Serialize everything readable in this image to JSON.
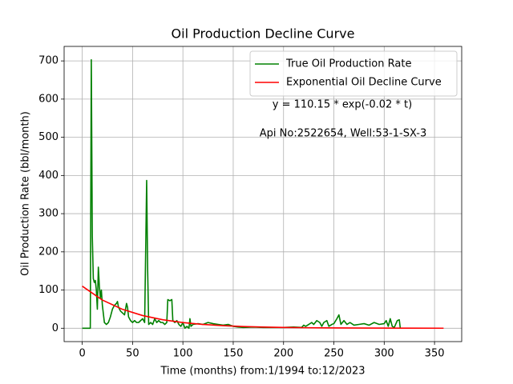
{
  "chart_data": {
    "type": "line",
    "title": "Oil Production Decline Curve",
    "xlabel": "Time (months) from:1/1994 to:12/2023",
    "ylabel": "Oil Production Rate (bbl/month)",
    "annotations": [
      "y = 110.15 * exp(-0.02 * t)",
      "Api No:2522654, Well:53-1-SX-3"
    ],
    "xlim": [
      -18,
      377
    ],
    "ylim": [
      -35,
      738
    ],
    "xticks": [
      0,
      50,
      100,
      150,
      200,
      250,
      300,
      350
    ],
    "yticks": [
      0,
      100,
      200,
      300,
      400,
      500,
      600,
      700
    ],
    "grid": true,
    "legend": "upper right",
    "series": [
      {
        "name": "True Oil Production Rate",
        "color": "#008000",
        "x": [
          0,
          8,
          9,
          10,
          11,
          12,
          13,
          14,
          15,
          16,
          17,
          18,
          19,
          20,
          22,
          24,
          26,
          28,
          30,
          32,
          34,
          35,
          36,
          38,
          40,
          42,
          44,
          45,
          46,
          48,
          50,
          52,
          54,
          56,
          58,
          60,
          62,
          63,
          64,
          65,
          66,
          68,
          70,
          72,
          74,
          76,
          78,
          80,
          82,
          84,
          85,
          87,
          89,
          90,
          92,
          94,
          96,
          98,
          100,
          102,
          104,
          106,
          107,
          108,
          110,
          115,
          120,
          125,
          130,
          135,
          140,
          145,
          150,
          155,
          160,
          170,
          180,
          190,
          200,
          210,
          218,
          220,
          222,
          225,
          228,
          230,
          233,
          236,
          238,
          240,
          243,
          245,
          248,
          250,
          253,
          255,
          257,
          260,
          263,
          266,
          270,
          275,
          280,
          285,
          290,
          295,
          300,
          302,
          304,
          306,
          308,
          310,
          313,
          315,
          316
        ],
        "values": [
          0,
          0,
          703,
          240,
          130,
          120,
          125,
          100,
          50,
          160,
          110,
          80,
          100,
          60,
          15,
          10,
          15,
          30,
          50,
          60,
          65,
          70,
          55,
          45,
          40,
          35,
          65,
          55,
          30,
          20,
          15,
          20,
          15,
          15,
          20,
          25,
          15,
          200,
          387,
          150,
          10,
          15,
          10,
          25,
          15,
          20,
          15,
          15,
          10,
          15,
          75,
          72,
          75,
          20,
          15,
          20,
          10,
          5,
          15,
          0,
          5,
          0,
          25,
          5,
          10,
          12,
          10,
          15,
          12,
          10,
          8,
          10,
          5,
          3,
          2,
          3,
          2,
          2,
          2,
          3,
          2,
          8,
          5,
          10,
          15,
          10,
          20,
          15,
          5,
          15,
          20,
          5,
          10,
          12,
          25,
          35,
          10,
          20,
          10,
          15,
          8,
          10,
          12,
          8,
          15,
          10,
          12,
          20,
          5,
          25,
          5,
          2,
          20,
          22,
          0
        ]
      },
      {
        "name": "Exponential Oil Decline Curve",
        "color": "#ff0000",
        "x": [
          0,
          20,
          40,
          60,
          80,
          100,
          120,
          140,
          160,
          180,
          200,
          240,
          280,
          320,
          359
        ],
        "values": [
          110.15,
          73.84,
          49.49,
          33.18,
          22.24,
          14.91,
          9.99,
          6.7,
          4.49,
          3.01,
          2.02,
          0.91,
          0.41,
          0.18,
          0.08
        ]
      }
    ]
  }
}
